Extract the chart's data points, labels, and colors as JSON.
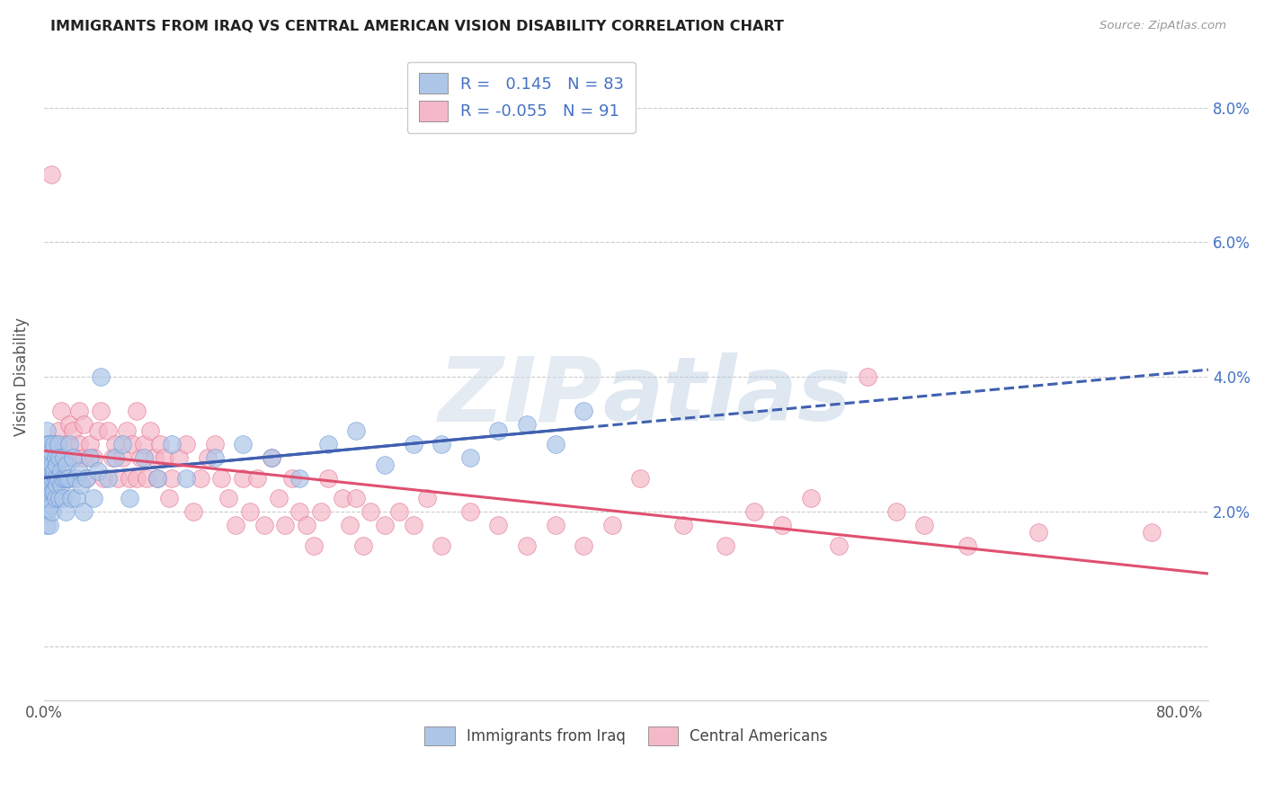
{
  "title": "IMMIGRANTS FROM IRAQ VS CENTRAL AMERICAN VISION DISABILITY CORRELATION CHART",
  "source": "Source: ZipAtlas.com",
  "ylabel": "Vision Disability",
  "legend_labels": [
    "Immigrants from Iraq",
    "Central Americans"
  ],
  "R_iraq": 0.145,
  "N_iraq": 83,
  "R_central": -0.055,
  "N_central": 91,
  "iraq_fill_color": "#adc6e8",
  "central_fill_color": "#f5b8c8",
  "iraq_edge_color": "#5b8ed6",
  "central_edge_color": "#e06080",
  "iraq_line_color": "#4060b0",
  "central_line_color": "#e05070",
  "watermark_zip": "ZIP",
  "watermark_atlas": "atlas",
  "xlim": [
    0.0,
    0.82
  ],
  "ylim": [
    -0.008,
    0.088
  ],
  "x_tick_pos": [
    0.0,
    0.1,
    0.2,
    0.3,
    0.4,
    0.5,
    0.6,
    0.7,
    0.8
  ],
  "x_tick_labels": [
    "0.0%",
    "",
    "",
    "",
    "",
    "",
    "",
    "",
    "80.0%"
  ],
  "y_tick_pos": [
    0.0,
    0.02,
    0.04,
    0.06,
    0.08
  ],
  "y_tick_labels_right": [
    "",
    "2.0%",
    "4.0%",
    "6.0%",
    "8.0%"
  ],
  "iraq_x": [
    0.001,
    0.001,
    0.001,
    0.001,
    0.002,
    0.002,
    0.002,
    0.002,
    0.002,
    0.003,
    0.003,
    0.003,
    0.003,
    0.003,
    0.004,
    0.004,
    0.004,
    0.004,
    0.004,
    0.005,
    0.005,
    0.005,
    0.005,
    0.006,
    0.006,
    0.006,
    0.006,
    0.007,
    0.007,
    0.007,
    0.008,
    0.008,
    0.008,
    0.009,
    0.009,
    0.01,
    0.01,
    0.011,
    0.011,
    0.012,
    0.012,
    0.013,
    0.013,
    0.014,
    0.015,
    0.015,
    0.016,
    0.017,
    0.018,
    0.019,
    0.02,
    0.022,
    0.023,
    0.025,
    0.026,
    0.028,
    0.03,
    0.032,
    0.035,
    0.038,
    0.04,
    0.045,
    0.05,
    0.055,
    0.06,
    0.07,
    0.08,
    0.09,
    0.1,
    0.12,
    0.14,
    0.16,
    0.18,
    0.2,
    0.22,
    0.24,
    0.26,
    0.28,
    0.3,
    0.32,
    0.34,
    0.36,
    0.38
  ],
  "iraq_y": [
    0.025,
    0.022,
    0.028,
    0.03,
    0.024,
    0.026,
    0.02,
    0.032,
    0.018,
    0.025,
    0.03,
    0.022,
    0.027,
    0.023,
    0.028,
    0.025,
    0.022,
    0.03,
    0.018,
    0.026,
    0.024,
    0.029,
    0.021,
    0.025,
    0.023,
    0.027,
    0.02,
    0.026,
    0.03,
    0.023,
    0.025,
    0.028,
    0.022,
    0.024,
    0.027,
    0.025,
    0.03,
    0.022,
    0.028,
    0.024,
    0.026,
    0.025,
    0.022,
    0.028,
    0.025,
    0.02,
    0.027,
    0.025,
    0.03,
    0.022,
    0.028,
    0.025,
    0.022,
    0.026,
    0.024,
    0.02,
    0.025,
    0.028,
    0.022,
    0.026,
    0.04,
    0.025,
    0.028,
    0.03,
    0.022,
    0.028,
    0.025,
    0.03,
    0.025,
    0.028,
    0.03,
    0.028,
    0.025,
    0.03,
    0.032,
    0.027,
    0.03,
    0.03,
    0.028,
    0.032,
    0.033,
    0.03,
    0.035
  ],
  "central_x": [
    0.005,
    0.008,
    0.01,
    0.012,
    0.012,
    0.015,
    0.018,
    0.018,
    0.02,
    0.022,
    0.025,
    0.025,
    0.028,
    0.028,
    0.03,
    0.032,
    0.035,
    0.038,
    0.04,
    0.042,
    0.045,
    0.048,
    0.05,
    0.052,
    0.055,
    0.058,
    0.06,
    0.062,
    0.065,
    0.065,
    0.068,
    0.07,
    0.072,
    0.075,
    0.078,
    0.08,
    0.082,
    0.085,
    0.088,
    0.09,
    0.095,
    0.1,
    0.105,
    0.11,
    0.115,
    0.12,
    0.125,
    0.13,
    0.135,
    0.14,
    0.145,
    0.15,
    0.155,
    0.16,
    0.165,
    0.17,
    0.175,
    0.18,
    0.185,
    0.19,
    0.195,
    0.2,
    0.21,
    0.215,
    0.22,
    0.225,
    0.23,
    0.24,
    0.25,
    0.26,
    0.27,
    0.28,
    0.3,
    0.32,
    0.34,
    0.36,
    0.38,
    0.4,
    0.42,
    0.45,
    0.48,
    0.5,
    0.52,
    0.54,
    0.56,
    0.58,
    0.6,
    0.62,
    0.65,
    0.7,
    0.78
  ],
  "central_y": [
    0.07,
    0.03,
    0.032,
    0.028,
    0.035,
    0.03,
    0.033,
    0.025,
    0.032,
    0.028,
    0.035,
    0.03,
    0.028,
    0.033,
    0.025,
    0.03,
    0.028,
    0.032,
    0.035,
    0.025,
    0.032,
    0.028,
    0.03,
    0.025,
    0.028,
    0.032,
    0.025,
    0.03,
    0.035,
    0.025,
    0.028,
    0.03,
    0.025,
    0.032,
    0.028,
    0.025,
    0.03,
    0.028,
    0.022,
    0.025,
    0.028,
    0.03,
    0.02,
    0.025,
    0.028,
    0.03,
    0.025,
    0.022,
    0.018,
    0.025,
    0.02,
    0.025,
    0.018,
    0.028,
    0.022,
    0.018,
    0.025,
    0.02,
    0.018,
    0.015,
    0.02,
    0.025,
    0.022,
    0.018,
    0.022,
    0.015,
    0.02,
    0.018,
    0.02,
    0.018,
    0.022,
    0.015,
    0.02,
    0.018,
    0.015,
    0.018,
    0.015,
    0.018,
    0.025,
    0.018,
    0.015,
    0.02,
    0.018,
    0.022,
    0.015,
    0.04,
    0.02,
    0.018,
    0.015,
    0.017,
    0.017
  ]
}
